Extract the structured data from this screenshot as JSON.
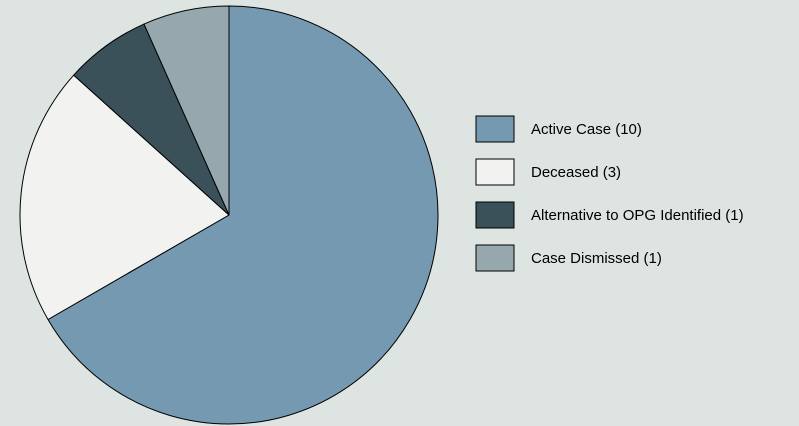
{
  "chart_data": {
    "type": "pie",
    "categories": [
      "Active Case (10)",
      "Deceased (3)",
      "Alternative to OPG Identified (1)",
      "Case Dismissed (1)"
    ],
    "values": [
      10,
      3,
      1,
      1
    ],
    "colors": [
      "#7599b1",
      "#f2f3f1",
      "#3b515a",
      "#96a8ae"
    ],
    "start_angle_deg": 0,
    "direction": "clockwise",
    "legend_position": "right",
    "background": "#dde4e1",
    "slice_stroke": "#000000"
  }
}
